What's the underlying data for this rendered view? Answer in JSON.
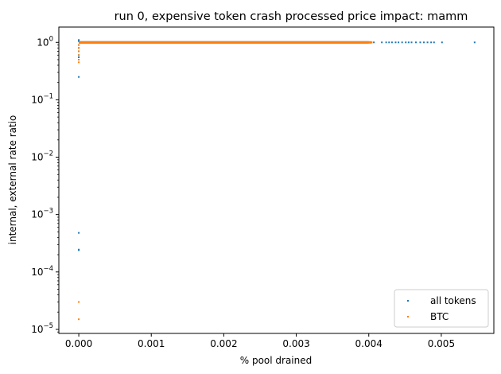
{
  "chart_data": {
    "type": "scatter",
    "title": "run 0, expensive token crash processed price impact: mamm",
    "xlabel": "% pool drained",
    "ylabel": "internal, external rate ratio",
    "xlim": [
      -0.000275,
      0.005725
    ],
    "ylim": [
      8.5e-06,
      1.85
    ],
    "yscale": "log",
    "xticks": [
      {
        "value": 0.0,
        "label": "0.000"
      },
      {
        "value": 0.001,
        "label": "0.001"
      },
      {
        "value": 0.002,
        "label": "0.002"
      },
      {
        "value": 0.003,
        "label": "0.003"
      },
      {
        "value": 0.004,
        "label": "0.004"
      },
      {
        "value": 0.005,
        "label": "0.005"
      }
    ],
    "yticks": [
      {
        "value": 1e-05,
        "base": "10",
        "exp": "−5"
      },
      {
        "value": 0.0001,
        "base": "10",
        "exp": "−4"
      },
      {
        "value": 0.001,
        "base": "10",
        "exp": "−3"
      },
      {
        "value": 0.01,
        "base": "10",
        "exp": "−2"
      },
      {
        "value": 0.1,
        "base": "10",
        "exp": "−1"
      },
      {
        "value": 1,
        "base": "10",
        "exp": "0"
      }
    ],
    "legend_position": "lower-right",
    "series": [
      {
        "name": "all tokens",
        "color": "#1f77b4",
        "points": [
          [
            0,
            0.25
          ],
          [
            0,
            0.00048
          ],
          [
            0,
            0.000245
          ],
          [
            0,
            0.00024
          ],
          [
            0,
            0.5
          ],
          [
            0,
            0.55
          ],
          [
            0,
            0.6
          ],
          [
            0,
            0.7
          ],
          [
            0,
            0.8
          ],
          [
            0,
            0.9
          ],
          [
            0,
            1.05
          ],
          [
            0,
            1.1
          ],
          [
            0.00342,
            1.0
          ],
          [
            0.00352,
            1.0
          ],
          [
            0.00368,
            1.0
          ],
          [
            0.00372,
            1.0
          ],
          [
            0.00378,
            1.0
          ],
          [
            0.00382,
            1.0
          ],
          [
            0.00388,
            1.0
          ],
          [
            0.00392,
            1.0
          ],
          [
            0.00398,
            1.0
          ],
          [
            0.00403,
            1.0
          ],
          [
            0.00407,
            1.0
          ],
          [
            0.00418,
            1.0
          ],
          [
            0.00424,
            1.0
          ],
          [
            0.00428,
            1.0
          ],
          [
            0.00432,
            1.0
          ],
          [
            0.00437,
            1.0
          ],
          [
            0.00441,
            1.0
          ],
          [
            0.00446,
            1.0
          ],
          [
            0.00451,
            1.0
          ],
          [
            0.00455,
            1.0
          ],
          [
            0.00459,
            1.0
          ],
          [
            0.00465,
            1.0
          ],
          [
            0.00471,
            1.0
          ],
          [
            0.00476,
            1.0
          ],
          [
            0.00481,
            1.0
          ],
          [
            0.00486,
            1.0
          ],
          [
            0.0049,
            1.0
          ],
          [
            0.00501,
            1.0
          ],
          [
            0.00546,
            1.0
          ]
        ],
        "line_segment": {
          "x_start": 0,
          "x_end": 0.004,
          "y": 1.0
        }
      },
      {
        "name": "BTC",
        "color": "#ff7f0e",
        "points": [
          [
            0,
            3e-05
          ],
          [
            0,
            1.5e-05
          ],
          [
            0,
            0.45
          ],
          [
            0,
            0.5
          ],
          [
            0,
            0.6
          ],
          [
            0,
            0.7
          ],
          [
            0,
            0.8
          ],
          [
            0,
            0.9
          ],
          [
            0.00355,
            1.0
          ],
          [
            0.00372,
            1.0
          ],
          [
            0.0038,
            1.0
          ],
          [
            0.00393,
            1.0
          ],
          [
            0.00404,
            1.0
          ]
        ],
        "line_segment": {
          "x_start": 0,
          "x_end": 0.00404,
          "y": 1.0
        }
      }
    ]
  }
}
